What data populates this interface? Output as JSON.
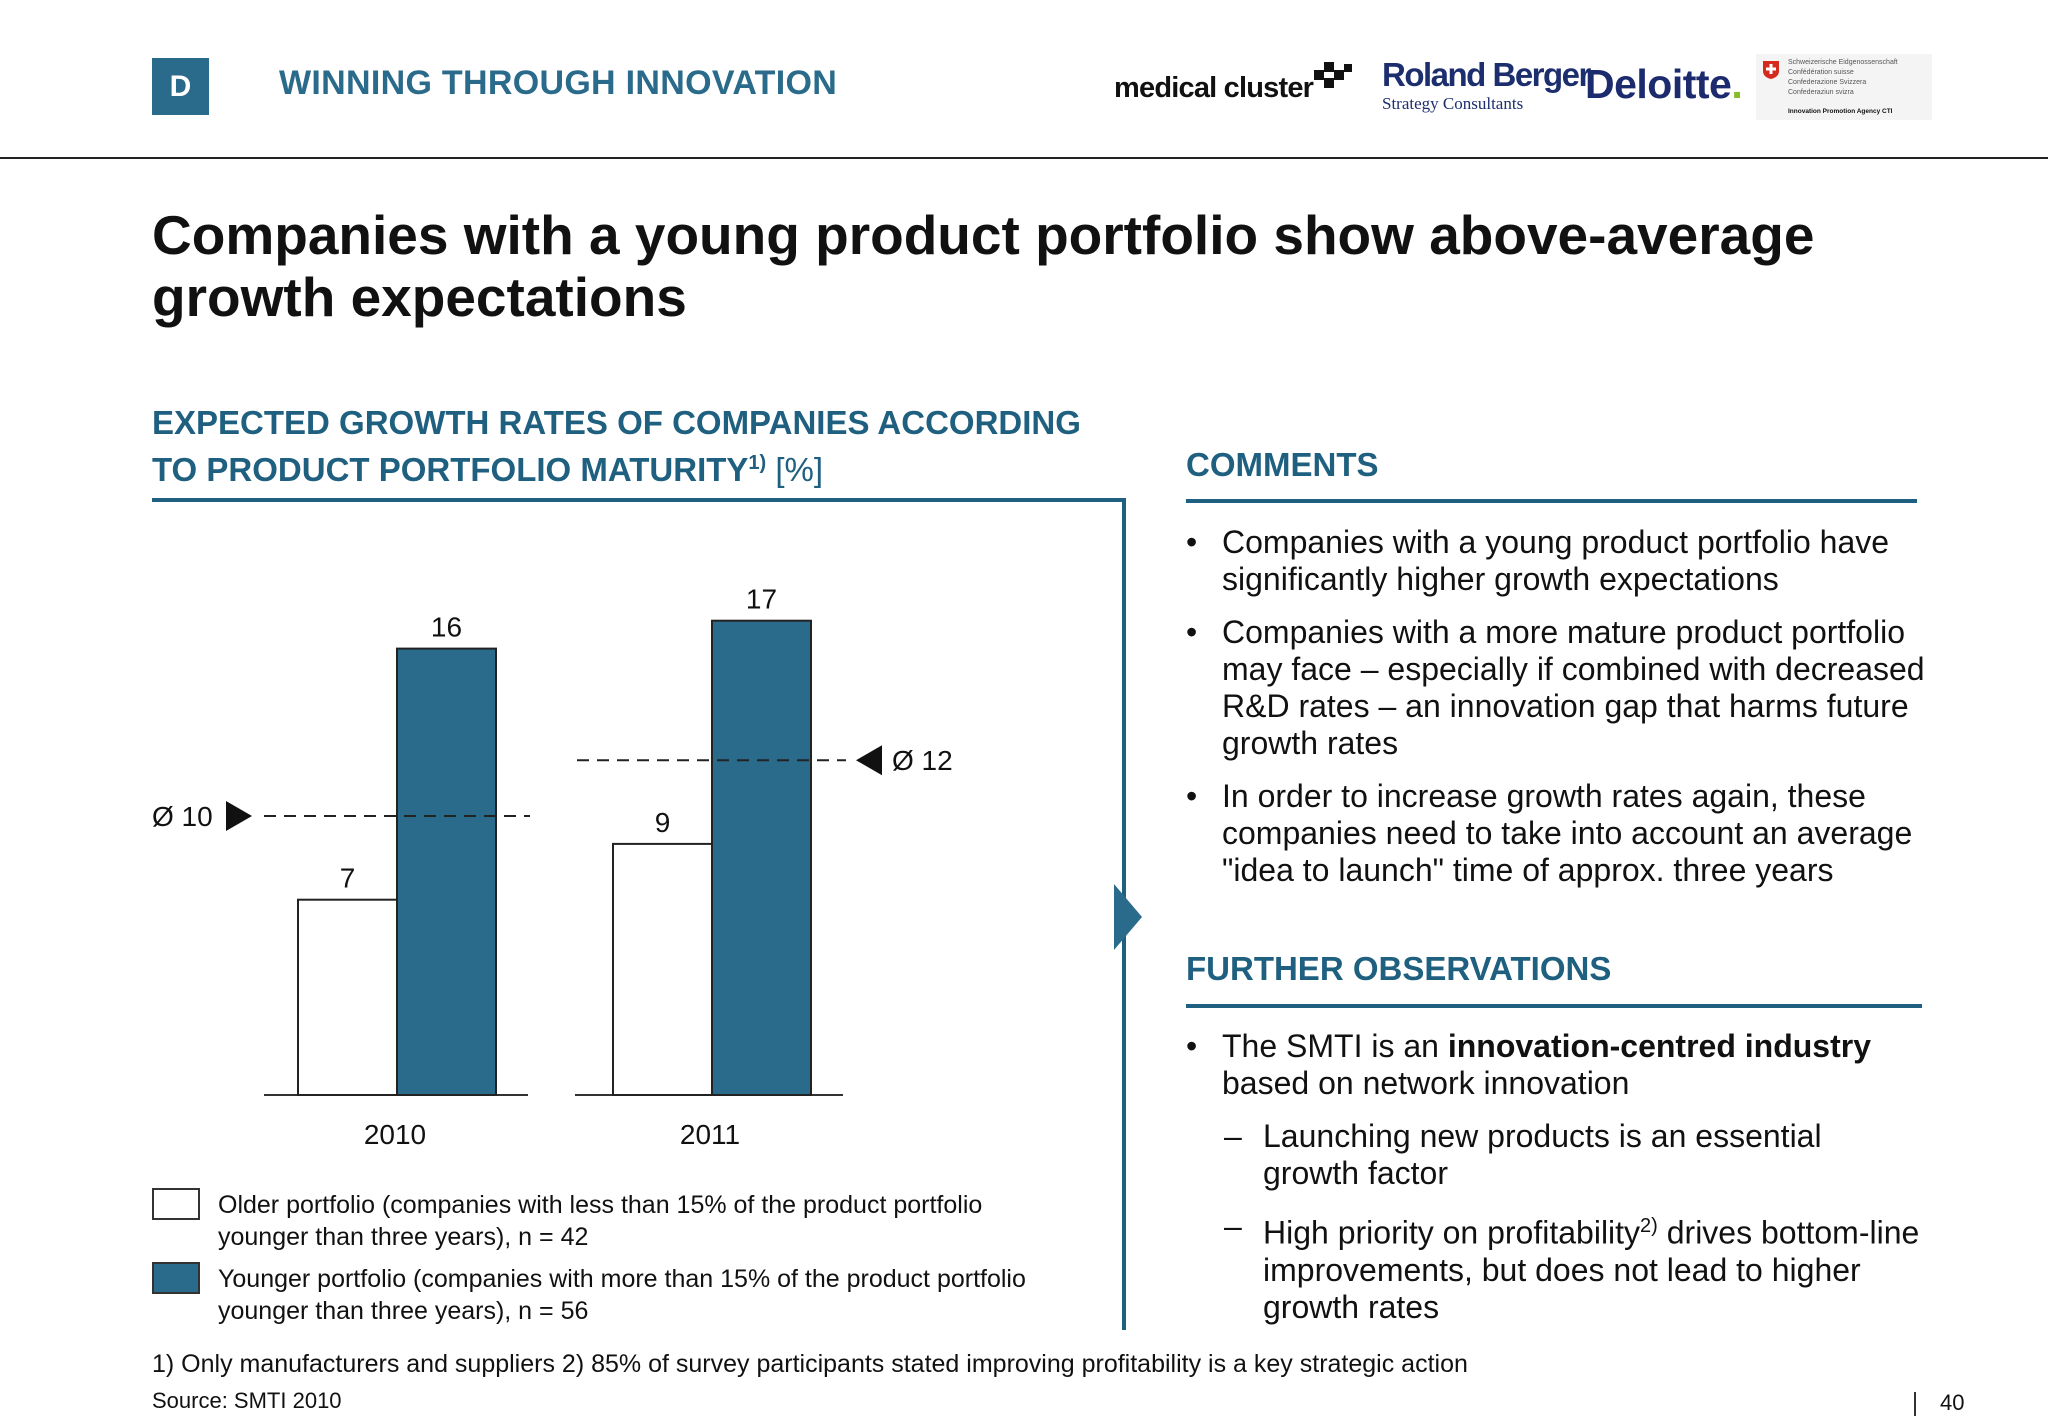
{
  "header": {
    "section_letter": "D",
    "section_title": "WINNING THROUGH INNOVATION",
    "logos": {
      "medical_cluster": "medical cluster",
      "roland_berger_name": "Roland Berger",
      "roland_berger_sub": "Strategy Consultants",
      "deloitte": "Deloitte",
      "cti_lines": [
        "Schweizerische Eidgenossenschaft",
        "Confédération suisse",
        "Confederazione Svizzera",
        "Confederaziun svizra"
      ],
      "cti_agency": "Innovation Promotion Agency CTI"
    }
  },
  "title": "Companies with a young product portfolio show above-average growth expectations",
  "chart_section": {
    "heading_line1": "EXPECTED GROWTH RATES OF COMPANIES ACCORDING",
    "heading_line2": "TO PRODUCT PORTFOLIO MATURITY",
    "heading_sup": "1)",
    "heading_unit": "[%]"
  },
  "chart_data": {
    "type": "bar",
    "categories": [
      "2010",
      "2011"
    ],
    "series": [
      {
        "name": "Older portfolio",
        "values": [
          7,
          9
        ],
        "color": "#ffffff"
      },
      {
        "name": "Younger portfolio",
        "values": [
          16,
          17
        ],
        "color": "#2a6a8a"
      }
    ],
    "averages": [
      {
        "category": "2010",
        "label": "Ø 10",
        "value": 10
      },
      {
        "category": "2011",
        "label": "Ø 12",
        "value": 12
      }
    ],
    "ylim": [
      0,
      17
    ]
  },
  "legend": [
    {
      "line1": "Older portfolio (companies with less than 15% of the product portfolio",
      "line2": "younger than three years), n = 42",
      "color": "#ffffff"
    },
    {
      "line1": "Younger portfolio (companies with more than 15% of the product portfolio",
      "line2": "younger than three years), n = 56",
      "color": "#2a6a8a"
    }
  ],
  "comments": {
    "heading": "COMMENTS",
    "bullets": [
      "Companies with a young product portfolio have significantly higher growth expectations",
      "Companies with a more mature product portfolio may face – especially if combined with decreased R&D rates – an innovation gap that harms future growth rates",
      "In order to increase growth rates again, these companies need to take into account an average \"idea to launch\" time of approx. three years"
    ]
  },
  "observations": {
    "heading": "FURTHER OBSERVATIONS",
    "bullet_pre": "The SMTI is an ",
    "bullet_bold": "innovation-centred industry",
    "bullet_post": " based on network innovation",
    "sub1": "Launching new products is an essential growth factor",
    "sub2_pre": "High priority on profitability",
    "sub2_sup": "2)",
    "sub2_post": " drives bottom-line improvements, but does not lead to higher growth rates"
  },
  "footnotes": "1) Only manufacturers and suppliers   2) 85% of survey participants stated improving profitability is a key strategic action",
  "source": "Source:  SMTI 2010",
  "page_number": "40"
}
